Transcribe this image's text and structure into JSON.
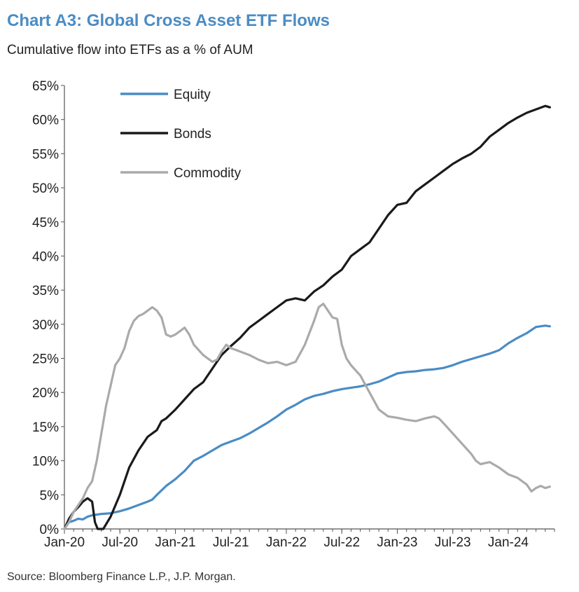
{
  "chart_data": {
    "type": "line",
    "title": "Chart A3: Global Cross Asset ETF Flows",
    "subtitle": "Cumulative flow into ETFs as a % of AUM",
    "source": "Source: Bloomberg Finance L.P., J.P. Morgan.",
    "xlabel": "",
    "ylabel": "",
    "ylim": [
      0,
      65
    ],
    "xlim": [
      0,
      53
    ],
    "x_unit": "months since Jan-20",
    "y_unit": "%",
    "grid": false,
    "legend_position": "top-left",
    "x_ticks": [
      {
        "x": 0,
        "label": "Jan-20"
      },
      {
        "x": 6,
        "label": "Jul-20"
      },
      {
        "x": 12,
        "label": "Jan-21"
      },
      {
        "x": 18,
        "label": "Jul-21"
      },
      {
        "x": 24,
        "label": "Jan-22"
      },
      {
        "x": 30,
        "label": "Jul-22"
      },
      {
        "x": 36,
        "label": "Jan-23"
      },
      {
        "x": 42,
        "label": "Jul-23"
      },
      {
        "x": 48,
        "label": "Jan-24"
      }
    ],
    "y_ticks": [
      {
        "y": 0,
        "label": "0%"
      },
      {
        "y": 5,
        "label": "5%"
      },
      {
        "y": 10,
        "label": "10%"
      },
      {
        "y": 15,
        "label": "15%"
      },
      {
        "y": 20,
        "label": "20%"
      },
      {
        "y": 25,
        "label": "25%"
      },
      {
        "y": 30,
        "label": "30%"
      },
      {
        "y": 35,
        "label": "35%"
      },
      {
        "y": 40,
        "label": "40%"
      },
      {
        "y": 45,
        "label": "45%"
      },
      {
        "y": 50,
        "label": "50%"
      },
      {
        "y": 55,
        "label": "55%"
      },
      {
        "y": 60,
        "label": "60%"
      },
      {
        "y": 65,
        "label": "65%"
      }
    ],
    "series": [
      {
        "name": "Equity",
        "color": "#4a8cc4",
        "points": [
          [
            0,
            0
          ],
          [
            0.5,
            1
          ],
          [
            1,
            1.2
          ],
          [
            1.5,
            1.5
          ],
          [
            2,
            1.4
          ],
          [
            2.5,
            1.8
          ],
          [
            3,
            2
          ],
          [
            4,
            2.2
          ],
          [
            5,
            2.3
          ],
          [
            6,
            2.6
          ],
          [
            7,
            3
          ],
          [
            8,
            3.5
          ],
          [
            9,
            4
          ],
          [
            9.5,
            4.3
          ],
          [
            10,
            5
          ],
          [
            11,
            6.3
          ],
          [
            12,
            7.3
          ],
          [
            13,
            8.5
          ],
          [
            14,
            10
          ],
          [
            15,
            10.7
          ],
          [
            16,
            11.5
          ],
          [
            17,
            12.3
          ],
          [
            18,
            12.8
          ],
          [
            19,
            13.3
          ],
          [
            20,
            14
          ],
          [
            21,
            14.8
          ],
          [
            22,
            15.6
          ],
          [
            23,
            16.5
          ],
          [
            24,
            17.5
          ],
          [
            25,
            18.2
          ],
          [
            26,
            19
          ],
          [
            27,
            19.5
          ],
          [
            28,
            19.8
          ],
          [
            29,
            20.2
          ],
          [
            30,
            20.5
          ],
          [
            31,
            20.7
          ],
          [
            32,
            20.9
          ],
          [
            33,
            21.2
          ],
          [
            34,
            21.6
          ],
          [
            35,
            22.2
          ],
          [
            36,
            22.8
          ],
          [
            37,
            23
          ],
          [
            38,
            23.1
          ],
          [
            39,
            23.3
          ],
          [
            40,
            23.4
          ],
          [
            41,
            23.6
          ],
          [
            42,
            24
          ],
          [
            43,
            24.5
          ],
          [
            44,
            24.9
          ],
          [
            45,
            25.3
          ],
          [
            46,
            25.7
          ],
          [
            47,
            26.2
          ],
          [
            48,
            27.2
          ],
          [
            49,
            28
          ],
          [
            50,
            28.7
          ],
          [
            51,
            29.6
          ],
          [
            52,
            29.8
          ],
          [
            52.5,
            29.7
          ]
        ]
      },
      {
        "name": "Bonds",
        "color": "#1a1a1a",
        "points": [
          [
            0,
            0
          ],
          [
            0.5,
            1.5
          ],
          [
            1,
            2.5
          ],
          [
            1.5,
            3.2
          ],
          [
            2,
            4
          ],
          [
            2.5,
            4.5
          ],
          [
            3,
            4
          ],
          [
            3.3,
            1
          ],
          [
            3.6,
            0
          ],
          [
            4.2,
            0
          ],
          [
            5,
            1.8
          ],
          [
            6,
            5
          ],
          [
            7,
            9
          ],
          [
            8,
            11.5
          ],
          [
            9,
            13.5
          ],
          [
            10,
            14.5
          ],
          [
            10.5,
            15.8
          ],
          [
            11,
            16.2
          ],
          [
            12,
            17.5
          ],
          [
            13,
            19
          ],
          [
            14,
            20.5
          ],
          [
            15,
            21.5
          ],
          [
            16,
            23.5
          ],
          [
            17,
            25.5
          ],
          [
            18,
            26.8
          ],
          [
            19,
            28
          ],
          [
            20,
            29.5
          ],
          [
            21,
            30.5
          ],
          [
            22,
            31.5
          ],
          [
            23,
            32.5
          ],
          [
            24,
            33.5
          ],
          [
            25,
            33.8
          ],
          [
            26,
            33.5
          ],
          [
            27,
            34.8
          ],
          [
            28,
            35.7
          ],
          [
            29,
            37
          ],
          [
            30,
            38
          ],
          [
            31,
            40
          ],
          [
            32,
            41
          ],
          [
            33,
            42
          ],
          [
            34,
            44
          ],
          [
            35,
            46
          ],
          [
            36,
            47.5
          ],
          [
            37,
            47.8
          ],
          [
            38,
            49.5
          ],
          [
            39,
            50.5
          ],
          [
            40,
            51.5
          ],
          [
            41,
            52.5
          ],
          [
            42,
            53.5
          ],
          [
            43,
            54.3
          ],
          [
            44,
            55
          ],
          [
            45,
            56
          ],
          [
            46,
            57.5
          ],
          [
            47,
            58.5
          ],
          [
            48,
            59.5
          ],
          [
            49,
            60.3
          ],
          [
            50,
            61
          ],
          [
            51,
            61.5
          ],
          [
            52,
            62
          ],
          [
            52.5,
            61.8
          ]
        ]
      },
      {
        "name": "Commodity",
        "color": "#aaaaaa",
        "points": [
          [
            0,
            0
          ],
          [
            0.5,
            1
          ],
          [
            1,
            2.5
          ],
          [
            1.5,
            3.5
          ],
          [
            2,
            4.5
          ],
          [
            2.5,
            6
          ],
          [
            3,
            7
          ],
          [
            3.5,
            10
          ],
          [
            4,
            14
          ],
          [
            4.5,
            18
          ],
          [
            5,
            21
          ],
          [
            5.5,
            24
          ],
          [
            6,
            25
          ],
          [
            6.5,
            26.5
          ],
          [
            7,
            29
          ],
          [
            7.5,
            30.5
          ],
          [
            8,
            31.2
          ],
          [
            8.5,
            31.5
          ],
          [
            9,
            32
          ],
          [
            9.5,
            32.5
          ],
          [
            10,
            32
          ],
          [
            10.5,
            31
          ],
          [
            11,
            28.5
          ],
          [
            11.5,
            28.2
          ],
          [
            12,
            28.5
          ],
          [
            12.5,
            29
          ],
          [
            13,
            29.5
          ],
          [
            13.5,
            28.5
          ],
          [
            14,
            27
          ],
          [
            15,
            25.5
          ],
          [
            16,
            24.5
          ],
          [
            16.5,
            24.8
          ],
          [
            17,
            26
          ],
          [
            17.5,
            27
          ],
          [
            18,
            26.5
          ],
          [
            19,
            26
          ],
          [
            20,
            25.5
          ],
          [
            21,
            24.8
          ],
          [
            22,
            24.3
          ],
          [
            23,
            24.5
          ],
          [
            24,
            24
          ],
          [
            25,
            24.5
          ],
          [
            26,
            27
          ],
          [
            27,
            30.5
          ],
          [
            27.5,
            32.5
          ],
          [
            28,
            33
          ],
          [
            28.5,
            32
          ],
          [
            29,
            31
          ],
          [
            29.5,
            30.8
          ],
          [
            30,
            27
          ],
          [
            30.5,
            25
          ],
          [
            31,
            24
          ],
          [
            32,
            22.5
          ],
          [
            33,
            20
          ],
          [
            34,
            17.5
          ],
          [
            35,
            16.5
          ],
          [
            36,
            16.3
          ],
          [
            37,
            16
          ],
          [
            38,
            15.8
          ],
          [
            39,
            16.2
          ],
          [
            40,
            16.5
          ],
          [
            40.5,
            16.2
          ],
          [
            41,
            15.5
          ],
          [
            42,
            14
          ],
          [
            43,
            12.5
          ],
          [
            44,
            11
          ],
          [
            44.5,
            10
          ],
          [
            45,
            9.5
          ],
          [
            46,
            9.8
          ],
          [
            47,
            9
          ],
          [
            48,
            8
          ],
          [
            49,
            7.5
          ],
          [
            50,
            6.5
          ],
          [
            50.5,
            5.5
          ],
          [
            51,
            6
          ],
          [
            51.5,
            6.3
          ],
          [
            52,
            6
          ],
          [
            52.5,
            6.2
          ]
        ]
      }
    ]
  }
}
